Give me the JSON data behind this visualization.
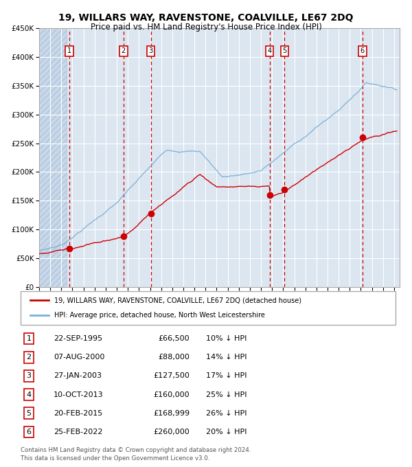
{
  "title": "19, WILLARS WAY, RAVENSTONE, COALVILLE, LE67 2DQ",
  "subtitle": "Price paid vs. HM Land Registry's House Price Index (HPI)",
  "legend_line1": "19, WILLARS WAY, RAVENSTONE, COALVILLE, LE67 2DQ (detached house)",
  "legend_line2": "HPI: Average price, detached house, North West Leicestershire",
  "footer_line1": "Contains HM Land Registry data © Crown copyright and database right 2024.",
  "footer_line2": "This data is licensed under the Open Government Licence v3.0.",
  "sale_points": [
    {
      "num": 1,
      "date": "22-SEP-1995",
      "price": 66500,
      "pct": "10%",
      "year": 1995.72
    },
    {
      "num": 2,
      "date": "07-AUG-2000",
      "price": 88000,
      "pct": "14%",
      "year": 2000.6
    },
    {
      "num": 3,
      "date": "27-JAN-2003",
      "price": 127500,
      "pct": "17%",
      "year": 2003.07
    },
    {
      "num": 4,
      "date": "10-OCT-2013",
      "price": 160000,
      "pct": "25%",
      "year": 2013.77
    },
    {
      "num": 5,
      "date": "20-FEB-2015",
      "price": 168999,
      "pct": "26%",
      "year": 2015.13
    },
    {
      "num": 6,
      "date": "25-FEB-2022",
      "price": 260000,
      "pct": "20%",
      "year": 2022.15
    }
  ],
  "hpi_color": "#7bafd4",
  "price_color": "#cc0000",
  "marker_color": "#cc0000",
  "dashed_color": "#cc0000",
  "bg_chart": "#dce6f1",
  "bg_hatch_color": "#c8d8ea",
  "ylim": [
    0,
    450000
  ],
  "xlim_start": 1993.0,
  "xlim_end": 2025.5,
  "ylabel_ticks": [
    0,
    50000,
    100000,
    150000,
    200000,
    250000,
    300000,
    350000,
    400000,
    450000
  ]
}
